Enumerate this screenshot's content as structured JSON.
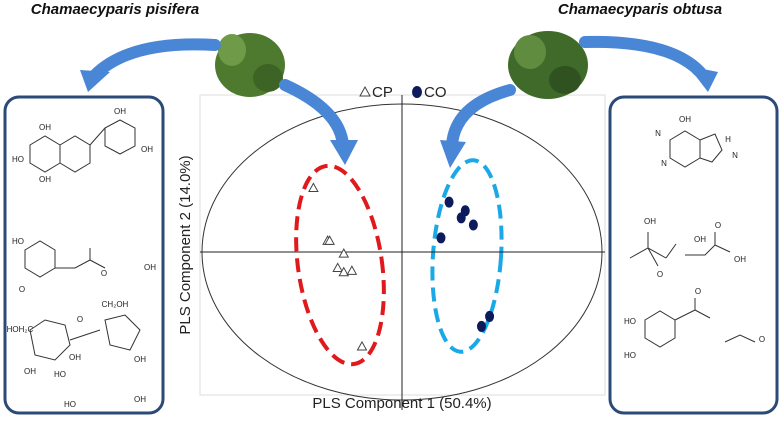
{
  "chart_data": {
    "type": "scatter",
    "xlabel": "PLS Component 1 (50.4%)",
    "ylabel": "PLS Component 2 (14.0%)",
    "xlim": [
      -1,
      1
    ],
    "ylim": [
      -1,
      1.1
    ],
    "series": [
      {
        "name": "CP",
        "marker": "triangle",
        "color": "#444444",
        "x": [
          -0.44,
          -0.37,
          -0.36,
          -0.29,
          -0.32,
          -0.29,
          -0.25,
          -0.2
        ],
        "y": [
          0.45,
          0.08,
          0.08,
          -0.01,
          -0.11,
          -0.14,
          -0.13,
          -0.66
        ]
      },
      {
        "name": "CO",
        "marker": "circle",
        "color": "#0d1a5c",
        "x": [
          0.23,
          0.31,
          0.29,
          0.35,
          0.19,
          0.43,
          0.39
        ],
        "y": [
          0.35,
          0.29,
          0.24,
          0.19,
          0.1,
          -0.45,
          -0.52
        ]
      }
    ]
  },
  "species": [
    "Chamaecyparis pisifera",
    "Chamaecyparis obtusa"
  ],
  "structures": {
    "left": [
      "OH",
      "OH",
      "HO",
      "OH",
      "OH",
      "HO",
      "O",
      "OH",
      "O",
      "HOH₂C",
      "CH₂OH",
      "HO",
      "OH",
      "OH",
      "OH",
      "O",
      "HO",
      "OH"
    ],
    "right": [
      "OH",
      "N",
      "H",
      "N",
      "N",
      "OH",
      "O",
      "OH",
      "O",
      "OH",
      "O",
      "HO",
      "HO",
      "O"
    ]
  }
}
